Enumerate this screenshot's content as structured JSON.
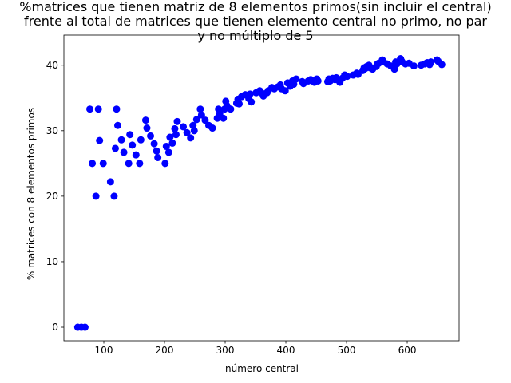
{
  "chart_data": {
    "type": "scatter",
    "title": "%matrices que tienen matriz de 8 elementos primos(sin incluir el central)\nfrente al total de matrices que tienen elemento central no primo, no par\ny no múltiplo de 5",
    "xlabel": "número central",
    "ylabel": "% matrices con 8 elementos primos",
    "xlim": [
      34.2,
      685.5
    ],
    "xticks": [
      100,
      200,
      300,
      400,
      500,
      600
    ],
    "ylim": [
      -2.07,
      44.6
    ],
    "yticks": [
      0,
      10,
      20,
      30,
      40
    ],
    "color": "#0000ff",
    "x": [
      57,
      63,
      69,
      77,
      81,
      87,
      91,
      93,
      99,
      111,
      117,
      119,
      121,
      123,
      129,
      133,
      141,
      143,
      147,
      153,
      159,
      161,
      169,
      171,
      177,
      183,
      187,
      189,
      201,
      203,
      207,
      209,
      213,
      217,
      219,
      221,
      231,
      237,
      243,
      247,
      249,
      253,
      259,
      261,
      267,
      273,
      279,
      287,
      289,
      291,
      297,
      299,
      301,
      303,
      309,
      319,
      321,
      323,
      327,
      333,
      339,
      341,
      343,
      351,
      357,
      361,
      363,
      369,
      371,
      377,
      381,
      387,
      391,
      393,
      399,
      403,
      407,
      411,
      413,
      417,
      427,
      429,
      437,
      441,
      447,
      451,
      453,
      469,
      471,
      473,
      477,
      481,
      483,
      489,
      493,
      497,
      501,
      511,
      517,
      519,
      527,
      529,
      531,
      533,
      537,
      539,
      543,
      549,
      551,
      553,
      559,
      561,
      567,
      573,
      579,
      581,
      583,
      589,
      591,
      597,
      603,
      611,
      623,
      629,
      633,
      637,
      639,
      649,
      651,
      657
    ],
    "y": [
      0,
      0,
      0,
      33.3,
      25,
      20,
      33.3,
      28.5,
      25,
      22.2,
      20,
      27.3,
      33.3,
      30.8,
      28.6,
      26.7,
      25,
      29.4,
      27.8,
      26.3,
      25,
      28.6,
      31.6,
      30.4,
      29.2,
      28,
      26.9,
      25.9,
      25,
      27.6,
      26.7,
      29,
      28.1,
      30.3,
      29.4,
      31.4,
      30.6,
      29.7,
      28.9,
      30.8,
      30,
      31.7,
      33.3,
      32.4,
      31.6,
      30.8,
      30.4,
      31.9,
      33.3,
      32.6,
      31.9,
      33.3,
      34.5,
      33.8,
      33.3,
      34.2,
      34.8,
      34.1,
      35.2,
      35.5,
      34.9,
      35.6,
      34.4,
      35.8,
      36.1,
      35.7,
      35.3,
      35.8,
      36.1,
      36.6,
      36.4,
      36.7,
      37,
      36.4,
      36.1,
      37.3,
      36.8,
      37.6,
      37.1,
      37.9,
      37.5,
      37.2,
      37.6,
      37.8,
      37.4,
      37.9,
      37.6,
      37.5,
      37.9,
      37.6,
      38,
      37.8,
      38.1,
      37.4,
      38,
      38.5,
      38.3,
      38.5,
      38.8,
      38.6,
      39.2,
      39.6,
      39.5,
      39.8,
      40,
      39.6,
      39.4,
      39.8,
      40.2,
      40.3,
      40.8,
      40.5,
      40.2,
      39.9,
      39.4,
      40.5,
      40.2,
      41,
      40.6,
      40.2,
      40.3,
      39.9,
      40,
      40.2,
      40.4,
      40.1,
      40.5,
      40.8,
      40.6,
      40.1
    ]
  }
}
